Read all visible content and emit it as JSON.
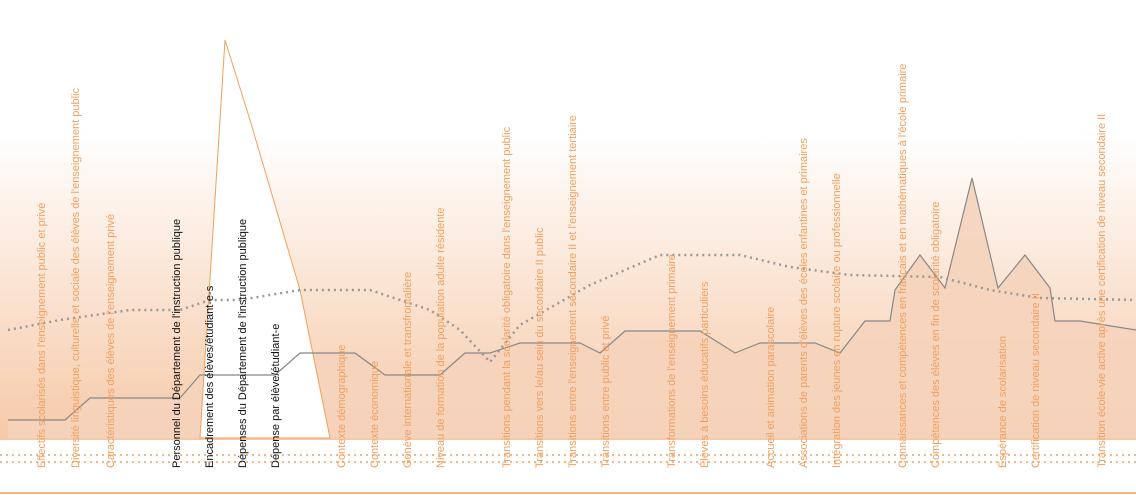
{
  "labels": [
    "Effectifs scolarisés dans l'enseignement public et privé",
    "Diversité linguistique, culturelle et sociale des élèves de l'enseignement public",
    "Caractéristiques des élèves de l'enseignement privé",
    "Personnel du Département de l'instruction publique",
    "Encadrement des élèves/étudiant-e-s",
    "Dépenses du Département de l'instruction publique",
    "Dépense par élève/étudiant-e",
    "Contexte démographique",
    "Contexte économique",
    "Genève internationale et transfrontalière",
    "Niveau de formation de la population adulte résidente",
    "Transitions pendant la scolarité obligatoire dans l'enseignement public",
    "Transitions vers le/au sein du secondaire II public",
    "Transitions entre l'enseignement secondaire II et l'enseignement tertiaire",
    "Transitions entre public et privé",
    "Transformations de l'enseignement primaire",
    "Élèves à besoins éducatifs particuliers",
    "Accueil et animation parascolaire",
    "Associations de parents d'élèves des écoles enfantines et primaires",
    "Intégration des jeunes en rupture scolaire ou professionnelle",
    "Connaissances et compétences en français et en mathématiques à l'école primaire",
    "Compétences des élèves en fin de scolarité obligatoire",
    "Espérance de scolarisation",
    "Certification de niveau secondaire II",
    "Transition école-vie active après une certification de niveau secondaire II"
  ]
}
